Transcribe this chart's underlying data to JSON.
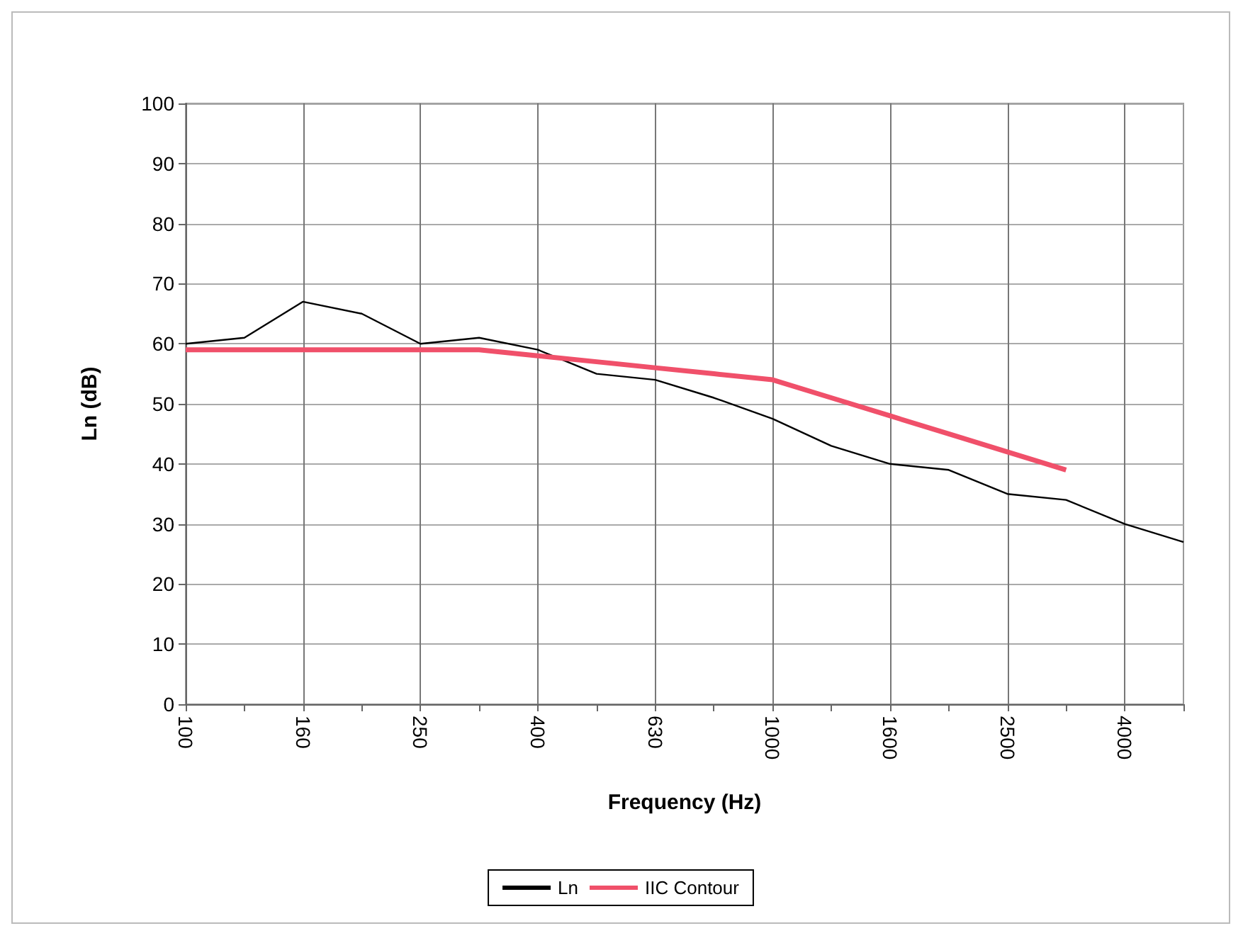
{
  "chart_data": {
    "type": "line",
    "xlabel": "Frequency (Hz)",
    "ylabel": "Ln (dB)",
    "categories": [
      "100",
      null,
      "160",
      null,
      "250",
      null,
      "400",
      null,
      "630",
      null,
      "1000",
      null,
      "1600",
      null,
      "2500",
      null,
      "4000",
      null
    ],
    "series": [
      {
        "name": "Ln",
        "color": "#000000",
        "values": [
          60,
          61,
          67,
          65,
          60,
          61,
          59,
          55,
          54,
          51,
          47.5,
          43,
          40,
          39,
          35,
          34,
          30,
          27
        ]
      },
      {
        "name": "IIC Contour",
        "color": "#f0506a",
        "values": [
          59,
          59,
          59,
          59,
          59,
          59,
          58,
          57,
          56,
          55,
          54,
          51,
          48,
          45,
          42,
          39,
          null,
          null
        ]
      }
    ],
    "ylim": [
      0,
      100
    ],
    "yticks": [
      0,
      10,
      20,
      30,
      40,
      50,
      60,
      70,
      80,
      90,
      100
    ],
    "grid": true,
    "legend": "bottom",
    "marker": "none",
    "line_style": "solid"
  }
}
